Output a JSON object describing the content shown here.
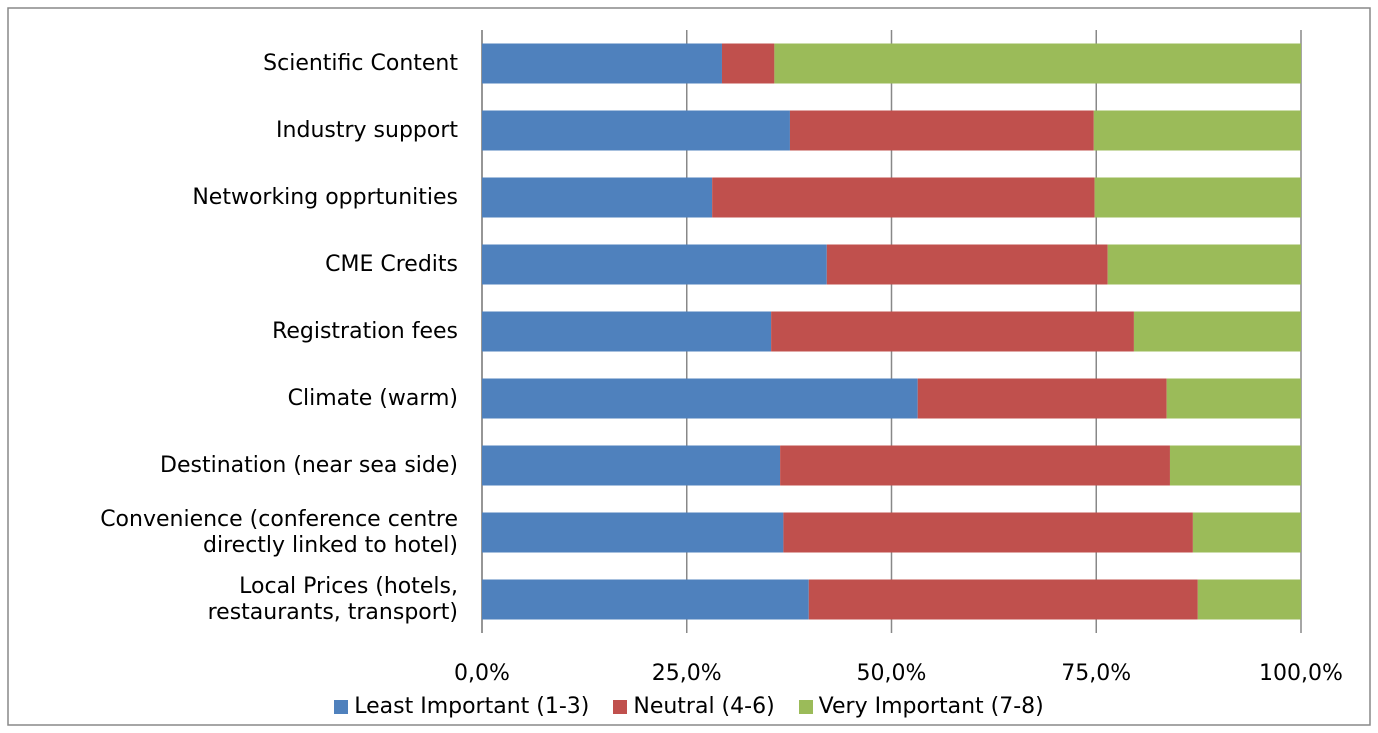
{
  "chart_data": {
    "type": "stacked_barh",
    "categories": [
      "Scientific Content",
      "Industry support",
      "Networking opprtunities",
      "CME Credits",
      "Registration fees",
      "Climate (warm)",
      "Destination (near sea side)",
      "Convenience (conference centre\ndirectly linked to hotel)",
      "Local Prices (hotels,\nrestaurants, transport)"
    ],
    "series": [
      {
        "name": "Least Important (1-3)",
        "color": "#4f81bd",
        "values": [
          29.3,
          37.6,
          28.1,
          42.1,
          35.3,
          53.2,
          36.4,
          36.8,
          39.9
        ]
      },
      {
        "name": "Neutral (4-6)",
        "color": "#c0504d",
        "values": [
          6.4,
          37.1,
          46.7,
          34.3,
          44.3,
          30.4,
          47.6,
          50.0,
          47.5
        ]
      },
      {
        "name": "Very Important (7-8)",
        "color": "#9bbb59",
        "values": [
          64.3,
          25.3,
          25.2,
          23.6,
          20.4,
          16.4,
          16.0,
          13.2,
          12.6
        ]
      }
    ],
    "xlim": [
      0,
      100
    ],
    "xticks": [
      {
        "value": 0,
        "label": "0,0%"
      },
      {
        "value": 25,
        "label": "25,0%"
      },
      {
        "value": 50,
        "label": "50,0%"
      },
      {
        "value": 75,
        "label": "75,0%"
      },
      {
        "value": 100,
        "label": "100,0%"
      }
    ],
    "grid": true,
    "legend": "bottom"
  }
}
